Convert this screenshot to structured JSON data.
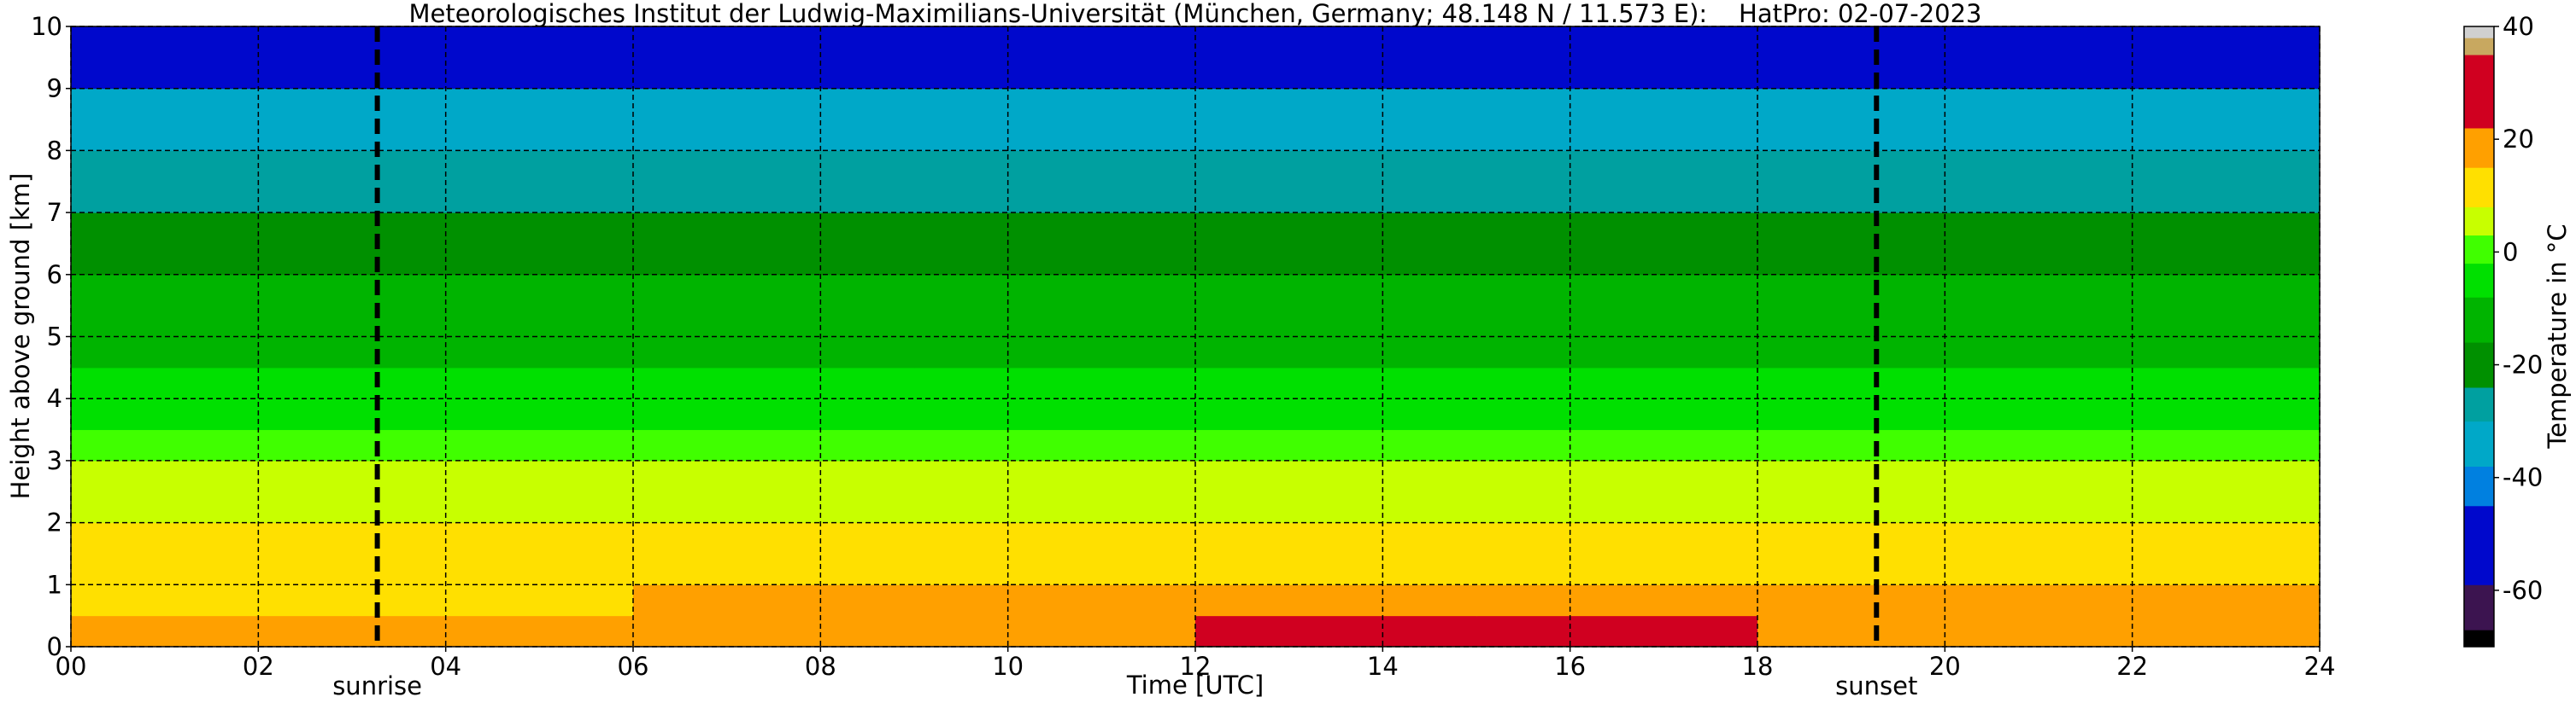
{
  "chart_data": {
    "type": "heatmap",
    "title": "Meteorologisches Institut der Ludwig-Maximilians-Universität (München, Germany; 48.148 N / 11.573 E):    HatPro: 02-07-2023",
    "xlabel": "Time [UTC]",
    "ylabel": "Height above ground [km]",
    "x_edges": [
      0,
      3,
      6,
      9,
      12,
      15,
      18,
      21,
      24
    ],
    "y_edges": [
      0,
      0.5,
      1,
      1.5,
      2,
      2.5,
      3,
      3.5,
      4,
      4.5,
      5,
      5.5,
      6,
      6.5,
      7,
      7.5,
      8,
      8.5,
      9,
      9.5,
      10
    ],
    "z": [
      [
        17,
        16,
        18,
        20,
        22,
        23,
        21,
        18
      ],
      [
        14,
        13,
        15,
        17,
        19,
        20,
        18,
        15
      ],
      [
        11,
        10,
        12,
        13,
        14,
        14,
        13,
        12
      ],
      [
        9,
        9,
        9,
        10,
        10,
        10,
        10,
        9
      ],
      [
        6,
        6,
        6,
        7,
        7,
        7,
        7,
        6
      ],
      [
        3,
        3,
        3,
        4,
        4,
        4,
        4,
        3
      ],
      [
        -1,
        -1,
        -1,
        0,
        0,
        0,
        0,
        -1
      ],
      [
        -4,
        -4,
        -4,
        -3,
        -3,
        -3,
        -3,
        -4
      ],
      [
        -7,
        -7,
        -7,
        -7,
        -7,
        -7,
        -7,
        -7
      ],
      [
        -10,
        -10,
        -10,
        -10,
        -10,
        -10,
        -10,
        -10
      ],
      [
        -13,
        -13,
        -13,
        -13,
        -13,
        -13,
        -13,
        -13
      ],
      [
        -16,
        -16,
        -16,
        -16,
        -16,
        -16,
        -16,
        -16
      ],
      [
        -20,
        -20,
        -20,
        -20,
        -20,
        -20,
        -20,
        -20
      ],
      [
        -23,
        -23,
        -23,
        -23,
        -23,
        -23,
        -23,
        -23
      ],
      [
        -27,
        -27,
        -27,
        -27,
        -27,
        -27,
        -27,
        -27
      ],
      [
        -30,
        -30,
        -30,
        -30,
        -30,
        -30,
        -30,
        -30
      ],
      [
        -34,
        -34,
        -34,
        -34,
        -34,
        -34,
        -34,
        -34
      ],
      [
        -38,
        -38,
        -38,
        -38,
        -38,
        -38,
        -38,
        -38
      ],
      [
        -46,
        -46,
        -46,
        -46,
        -46,
        -46,
        -46,
        -46
      ],
      [
        -50,
        -50,
        -50,
        -50,
        -50,
        -50,
        -50,
        -50
      ]
    ],
    "xlim": [
      0,
      24
    ],
    "ylim": [
      0,
      10
    ],
    "xticks": [
      {
        "value": 0,
        "label": "00"
      },
      {
        "value": 2,
        "label": "02"
      },
      {
        "value": 4,
        "label": "04"
      },
      {
        "value": 6,
        "label": "06"
      },
      {
        "value": 8,
        "label": "08"
      },
      10,
      12,
      14,
      16,
      18,
      20,
      22,
      24
    ],
    "yticks": [
      0,
      1,
      2,
      3,
      4,
      5,
      6,
      7,
      8,
      9,
      10
    ],
    "grid": true,
    "colorbar": {
      "label": "Temperature in °C",
      "lim": [
        -70,
        40
      ],
      "ticks": [
        -60,
        -40,
        -20,
        0,
        20,
        40
      ],
      "scale": [
        {
          "value": -70,
          "color": "#000000"
        },
        {
          "value": -67,
          "color": "#3c1450"
        },
        {
          "value": -59,
          "color": "#0008cc"
        },
        {
          "value": -45,
          "color": "#0080e0"
        },
        {
          "value": -38,
          "color": "#00a8c8"
        },
        {
          "value": -30,
          "color": "#00a0a0"
        },
        {
          "value": -24,
          "color": "#009000"
        },
        {
          "value": -16,
          "color": "#00b400"
        },
        {
          "value": -8,
          "color": "#00e000"
        },
        {
          "value": -2,
          "color": "#40ff00"
        },
        {
          "value": 3,
          "color": "#c8ff00"
        },
        {
          "value": 8,
          "color": "#ffe000"
        },
        {
          "value": 15,
          "color": "#ffa000"
        },
        {
          "value": 22,
          "color": "#d00020"
        },
        {
          "value": 35,
          "color": "#c8a860"
        },
        {
          "value": 38,
          "color": "#d0d0d0"
        }
      ]
    },
    "annotations": [
      {
        "x": 3.27,
        "text": "sunrise"
      },
      {
        "x": 19.27,
        "text": "sunset"
      }
    ]
  }
}
